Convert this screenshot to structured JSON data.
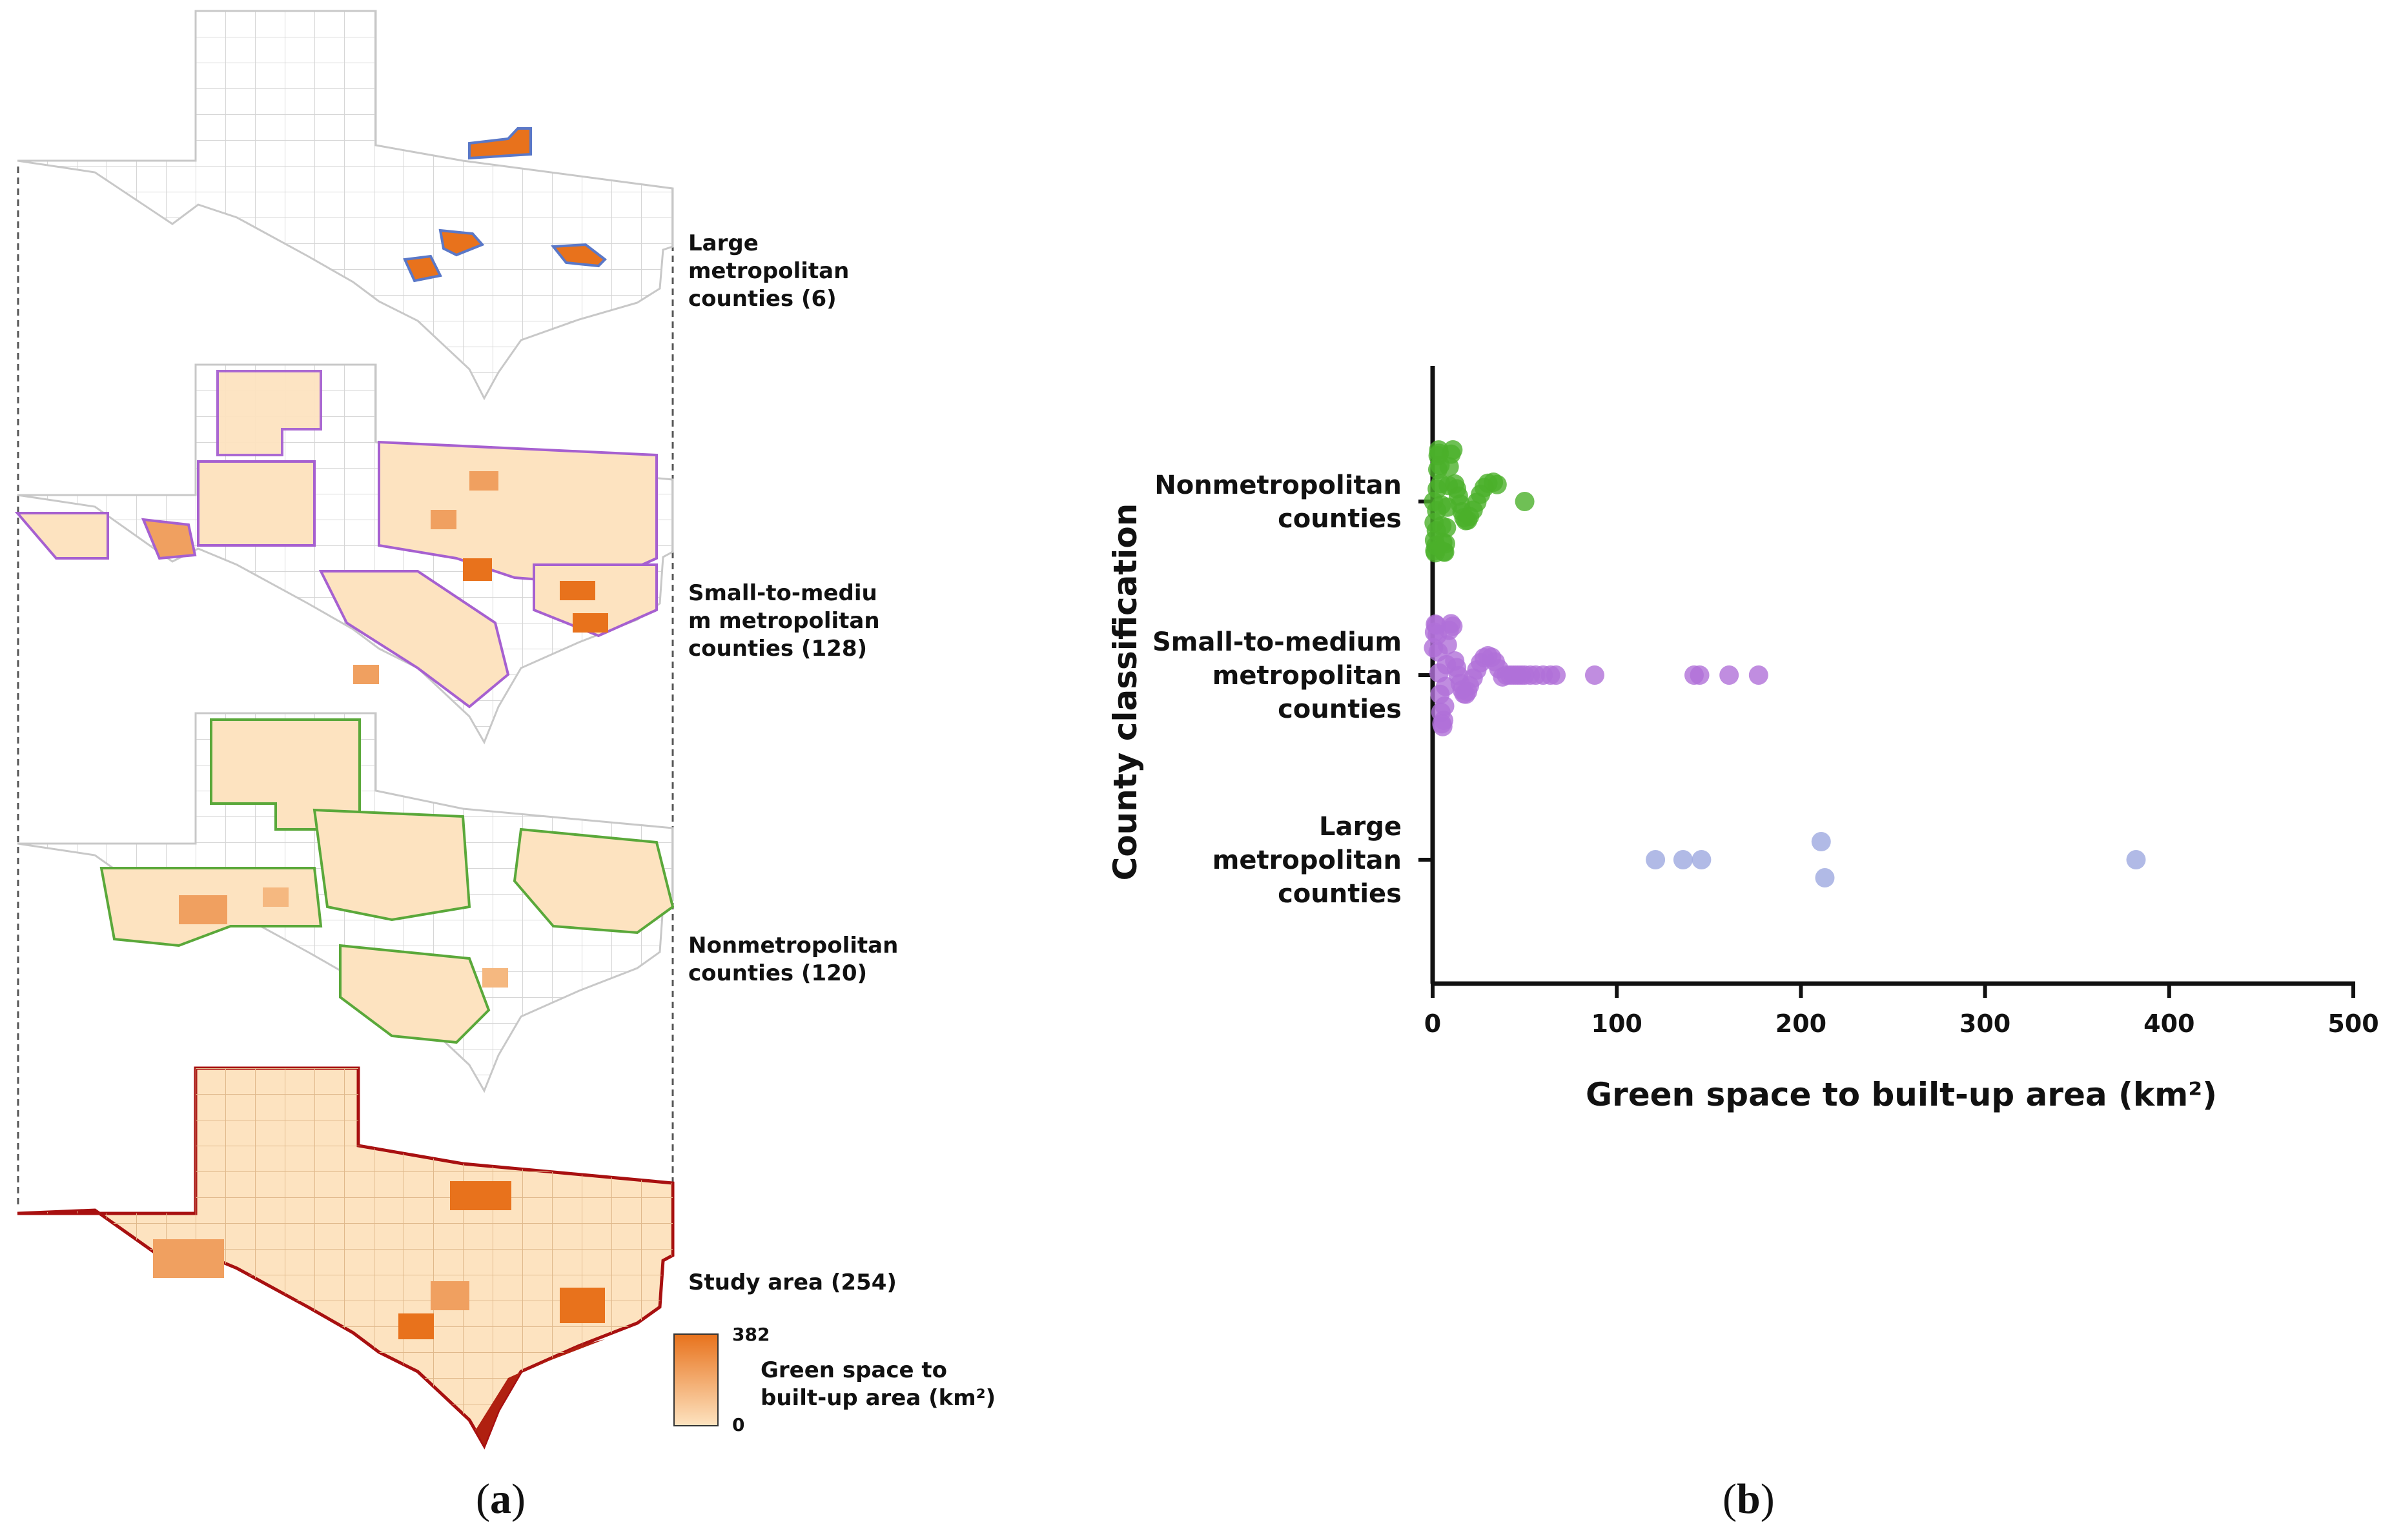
{
  "panel_a": {
    "maps": [
      {
        "label": "Large metropolitan counties (6)",
        "line1": "Large",
        "line2": "metropolitan",
        "line3": "counties (6)",
        "outline_color": "#5a78c8"
      },
      {
        "label": "Small-to-medium metropolitan counties (128)",
        "line1": "Small-to-mediu",
        "line2": "m metropolitan",
        "line3": "counties (128)",
        "outline_color": "#a660d0"
      },
      {
        "label": "Nonmetropolitan counties (120)",
        "line1": "Nonmetropolitan",
        "line2": "counties (120)",
        "outline_color": "#5aa83a"
      },
      {
        "label": "Study area (254)",
        "line1": "Study area (254)",
        "outline_color": "#a81010"
      }
    ],
    "legend": {
      "max": "382",
      "min": "0",
      "title_line1": "Green space to",
      "title_line2": "built-up area (km²)",
      "color_high": "#e8721c",
      "color_low": "#fde3c0"
    },
    "caption": {
      "open": "(",
      "letter": "a",
      "close": ")"
    }
  },
  "panel_b": {
    "caption": {
      "open": "(",
      "letter": "b",
      "close": ")"
    }
  },
  "chart_data": {
    "type": "scatter",
    "title": "",
    "xlabel": "Green space to built-up area  (km²)",
    "ylabel": "County classification",
    "xlim": [
      0,
      500
    ],
    "xticks": [
      0,
      100,
      200,
      300,
      400,
      500
    ],
    "categories": [
      {
        "line1": "Nonmetropolitan",
        "line2": "counties"
      },
      {
        "line1": "Small-to-medium",
        "line2": "metropolitan",
        "line3": "counties"
      },
      {
        "line1": "Large",
        "line2": "metropolitan",
        "line3": "counties"
      }
    ],
    "series": [
      {
        "name": "Nonmetropolitan counties",
        "color": "#4bb02a",
        "category_index": 0,
        "values_note": "120 counties clustered 0-35, one outlier near 50",
        "values": [
          0.5,
          0.8,
          1,
          1.2,
          1.5,
          1.8,
          2,
          2.2,
          2.5,
          2.8,
          3,
          3.3,
          3.6,
          4,
          4.3,
          4.7,
          5,
          5.5,
          6,
          6.5,
          7,
          7.5,
          8,
          8.5,
          9,
          10,
          11,
          12,
          13,
          14,
          15,
          16,
          17,
          18,
          19,
          20,
          22,
          24,
          26,
          28,
          30,
          33,
          35,
          50
        ]
      },
      {
        "name": "Small-to-medium metropolitan counties",
        "color": "#b071d8",
        "category_index": 1,
        "values_note": "128 counties, cluster 0-70 with outliers",
        "values": [
          0.5,
          1,
          1.5,
          2,
          2.5,
          3,
          3.5,
          4,
          4.5,
          5,
          5.5,
          6,
          6.5,
          7,
          7.5,
          8,
          9,
          10,
          11,
          12,
          13,
          14,
          15,
          16,
          17,
          18,
          19,
          20,
          22,
          24,
          26,
          28,
          30,
          32,
          34,
          36,
          38,
          40,
          42,
          44,
          46,
          48,
          50,
          53,
          56,
          60,
          64,
          67,
          88,
          142,
          145,
          161,
          177
        ]
      },
      {
        "name": "Large metropolitan counties",
        "color": "#9ea9e0",
        "category_index": 2,
        "values": [
          121,
          136,
          146,
          211,
          213,
          382
        ]
      }
    ]
  }
}
